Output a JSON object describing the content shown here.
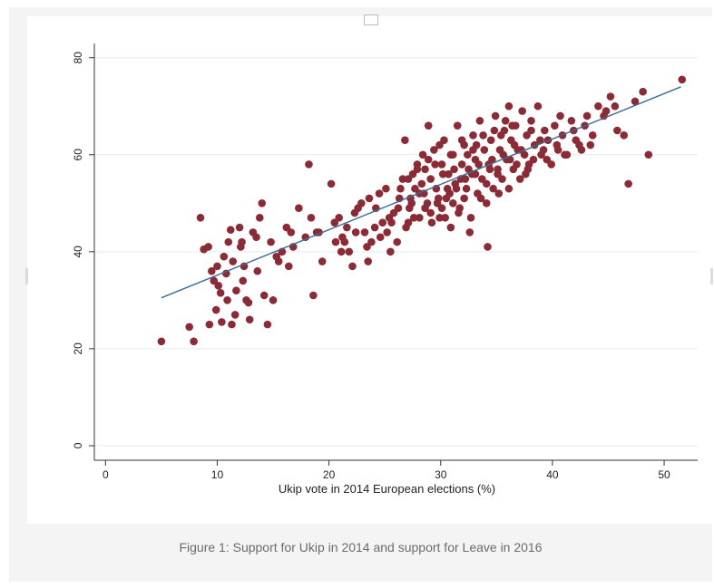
{
  "caption": "Figure 1: Support for Ukip in 2014 and support for Leave in 2016",
  "colors": {
    "points": "#8b2b35",
    "fit_line": "#3b6a98",
    "grid": "#e5ecf1",
    "axis": "#333333"
  },
  "chart_data": {
    "type": "scatter",
    "title": "",
    "xlabel": "Ukip vote in 2014 European elections (%)",
    "ylabel": "",
    "xlim": [
      -1,
      53
    ],
    "ylim": [
      -3,
      82
    ],
    "xticks": [
      0,
      10,
      20,
      30,
      40,
      50
    ],
    "yticks": [
      0,
      20,
      40,
      60,
      80
    ],
    "grid": true,
    "fit_line": {
      "x": [
        5,
        51.5
      ],
      "y": [
        30.5,
        74
      ]
    },
    "points": [
      [
        5,
        21.5
      ],
      [
        7.5,
        24.5
      ],
      [
        7.9,
        21.5
      ],
      [
        8.5,
        47
      ],
      [
        8.8,
        40.5
      ],
      [
        9.2,
        41
      ],
      [
        9.5,
        36
      ],
      [
        9.7,
        34
      ],
      [
        9.3,
        25
      ],
      [
        10,
        37
      ],
      [
        10.1,
        33
      ],
      [
        10.3,
        31.5
      ],
      [
        10.4,
        25.5
      ],
      [
        10.6,
        39
      ],
      [
        10.8,
        35.5
      ],
      [
        11,
        42
      ],
      [
        11.2,
        44.5
      ],
      [
        11.4,
        38
      ],
      [
        11.6,
        27
      ],
      [
        11.3,
        25
      ],
      [
        12,
        45
      ],
      [
        12.2,
        42
      ],
      [
        12.4,
        37
      ],
      [
        12.6,
        30
      ],
      [
        12.8,
        29.5
      ],
      [
        12.9,
        26
      ],
      [
        13.2,
        44
      ],
      [
        13.5,
        43
      ],
      [
        13.8,
        47
      ],
      [
        14,
        50
      ],
      [
        14.2,
        31
      ],
      [
        14.5,
        25
      ],
      [
        15,
        30
      ],
      [
        15.5,
        38
      ],
      [
        15.8,
        40
      ],
      [
        16.2,
        45
      ],
      [
        16.4,
        37
      ],
      [
        16.8,
        41
      ],
      [
        17.3,
        49
      ],
      [
        18.2,
        58
      ],
      [
        18.6,
        31
      ],
      [
        18.9,
        44
      ],
      [
        19.4,
        38
      ],
      [
        20.2,
        54
      ],
      [
        20.5,
        46
      ],
      [
        20.9,
        47
      ],
      [
        21.2,
        43
      ],
      [
        21.4,
        42
      ],
      [
        21.8,
        40
      ],
      [
        22.3,
        48
      ],
      [
        22.1,
        37
      ],
      [
        22.9,
        50
      ],
      [
        23.2,
        44
      ],
      [
        23.5,
        38
      ],
      [
        23.8,
        42
      ],
      [
        24.2,
        49
      ],
      [
        24.5,
        52
      ],
      [
        24.8,
        46
      ],
      [
        25.2,
        44
      ],
      [
        25.5,
        40
      ],
      [
        25.8,
        48
      ],
      [
        26.1,
        42
      ],
      [
        26.4,
        53
      ],
      [
        26.8,
        63
      ],
      [
        27.1,
        55
      ],
      [
        27.4,
        50
      ],
      [
        27.6,
        47
      ],
      [
        27.9,
        57
      ],
      [
        28.1,
        52
      ],
      [
        28.4,
        60
      ],
      [
        28.6,
        49
      ],
      [
        28.9,
        66
      ],
      [
        29.1,
        55
      ],
      [
        29.4,
        61
      ],
      [
        29.6,
        53
      ],
      [
        29.9,
        47
      ],
      [
        30.1,
        58
      ],
      [
        30.3,
        63
      ],
      [
        30.5,
        51
      ],
      [
        30.7,
        56
      ],
      [
        30.9,
        45
      ],
      [
        31.1,
        60
      ],
      [
        31.3,
        54
      ],
      [
        31.5,
        66
      ],
      [
        31.7,
        49
      ],
      [
        31.9,
        58
      ],
      [
        32.1,
        62
      ],
      [
        32.3,
        53
      ],
      [
        32.5,
        57
      ],
      [
        32.7,
        47
      ],
      [
        32.9,
        64
      ],
      [
        33.1,
        59
      ],
      [
        33.3,
        52
      ],
      [
        33.5,
        67
      ],
      [
        33.7,
        55
      ],
      [
        33.9,
        61
      ],
      [
        34.1,
        50
      ],
      [
        34.3,
        58
      ],
      [
        34.5,
        63
      ],
      [
        34.7,
        53
      ],
      [
        34.9,
        68
      ],
      [
        35.1,
        57
      ],
      [
        35.3,
        61
      ],
      [
        35.5,
        55
      ],
      [
        35.7,
        65
      ],
      [
        35.9,
        59
      ],
      [
        36.1,
        70
      ],
      [
        36.3,
        63
      ],
      [
        36.5,
        57
      ],
      [
        36.7,
        66
      ],
      [
        36.9,
        61
      ],
      [
        37.1,
        55
      ],
      [
        37.3,
        69
      ],
      [
        37.5,
        60
      ],
      [
        37.7,
        64
      ],
      [
        37.9,
        58
      ],
      [
        38.1,
        67
      ],
      [
        38.4,
        62
      ],
      [
        38.7,
        70
      ],
      [
        39,
        60
      ],
      [
        39.3,
        65
      ],
      [
        39.6,
        63
      ],
      [
        39.9,
        58
      ],
      [
        40.2,
        66
      ],
      [
        40.5,
        61
      ],
      [
        40.9,
        64
      ],
      [
        41.3,
        60
      ],
      [
        41.7,
        67
      ],
      [
        42.1,
        63
      ],
      [
        42.6,
        61
      ],
      [
        43.1,
        68
      ],
      [
        43.6,
        64
      ],
      [
        44.1,
        70
      ],
      [
        44.6,
        68
      ],
      [
        45.2,
        72
      ],
      [
        45.8,
        65
      ],
      [
        46.4,
        64
      ],
      [
        46.8,
        54
      ],
      [
        47.4,
        71
      ],
      [
        48.1,
        73
      ],
      [
        48.6,
        60
      ],
      [
        51.6,
        75.5
      ],
      [
        34.2,
        41
      ],
      [
        32.6,
        44
      ],
      [
        26.9,
        45
      ],
      [
        29.2,
        46
      ],
      [
        30.4,
        47
      ],
      [
        31.6,
        48
      ],
      [
        27.2,
        49
      ],
      [
        28.8,
        50
      ],
      [
        33.6,
        51
      ],
      [
        35.2,
        52
      ],
      [
        29.8,
        51
      ],
      [
        30.6,
        53
      ],
      [
        31.8,
        55
      ],
      [
        32.8,
        56
      ],
      [
        28.3,
        54
      ],
      [
        27.7,
        53
      ],
      [
        26.3,
        51
      ],
      [
        25.4,
        47
      ],
      [
        24.1,
        45
      ],
      [
        36.8,
        58
      ],
      [
        37.6,
        56
      ],
      [
        38.3,
        59
      ],
      [
        39.2,
        61
      ],
      [
        34.6,
        59
      ],
      [
        33.2,
        62
      ],
      [
        35.4,
        64
      ],
      [
        36.4,
        66
      ],
      [
        31.2,
        57
      ],
      [
        30.2,
        56
      ],
      [
        29.5,
        58
      ],
      [
        32.4,
        60
      ],
      [
        28.6,
        57
      ],
      [
        27.5,
        56
      ],
      [
        26.6,
        55
      ],
      [
        25.1,
        53
      ],
      [
        23.6,
        51
      ],
      [
        22.6,
        49
      ],
      [
        21.6,
        45
      ],
      [
        20.6,
        42
      ],
      [
        19.1,
        44
      ],
      [
        17.9,
        43
      ],
      [
        15.3,
        39
      ],
      [
        13.6,
        36
      ],
      [
        12.3,
        34
      ],
      [
        11.7,
        32
      ],
      [
        10.9,
        30
      ],
      [
        9.9,
        28
      ],
      [
        12.1,
        41
      ],
      [
        14.8,
        42
      ],
      [
        16.6,
        44
      ],
      [
        18.4,
        47
      ],
      [
        40.7,
        68
      ],
      [
        41.9,
        65
      ],
      [
        42.9,
        66
      ],
      [
        44.8,
        69
      ],
      [
        45.6,
        70
      ],
      [
        38.9,
        63
      ],
      [
        37.2,
        61
      ],
      [
        36.2,
        59
      ],
      [
        35.6,
        60
      ],
      [
        34.4,
        57
      ],
      [
        33.4,
        58
      ],
      [
        32.2,
        55
      ],
      [
        31.4,
        53
      ],
      [
        30.8,
        52
      ],
      [
        29.7,
        50
      ],
      [
        28.5,
        52
      ],
      [
        27.3,
        51
      ],
      [
        26.2,
        49
      ],
      [
        25.6,
        46
      ],
      [
        24.6,
        43
      ],
      [
        23.4,
        41
      ],
      [
        22.4,
        44
      ],
      [
        21.1,
        40
      ],
      [
        36.6,
        62
      ],
      [
        37.8,
        57
      ],
      [
        39.5,
        59
      ],
      [
        40.4,
        62
      ],
      [
        41.1,
        60
      ],
      [
        42.4,
        62
      ],
      [
        43.4,
        62
      ],
      [
        38.1,
        65
      ],
      [
        35.8,
        67
      ],
      [
        34.8,
        65
      ],
      [
        33.8,
        64
      ],
      [
        32.9,
        61
      ],
      [
        31.9,
        63
      ],
      [
        30.9,
        60
      ],
      [
        29.9,
        62
      ],
      [
        28.9,
        59
      ],
      [
        27.9,
        58
      ],
      [
        34.1,
        54
      ],
      [
        35.1,
        56
      ],
      [
        36.1,
        53
      ],
      [
        33.1,
        56
      ],
      [
        32.1,
        51
      ],
      [
        31.1,
        50
      ],
      [
        30.1,
        49
      ],
      [
        29.1,
        48
      ],
      [
        28.1,
        47
      ],
      [
        27.1,
        46
      ]
    ]
  }
}
